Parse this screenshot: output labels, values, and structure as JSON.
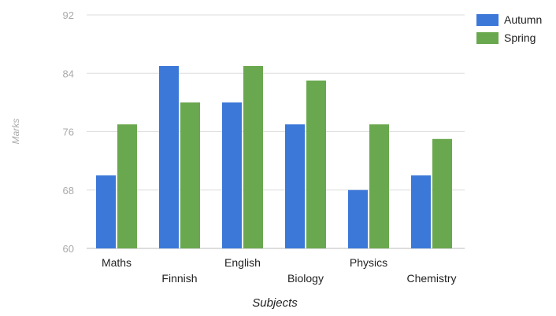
{
  "chart_data": {
    "type": "bar",
    "title": "",
    "xlabel": "Subjects",
    "ylabel": "Marks",
    "categories": [
      "Maths",
      "Finnish",
      "English",
      "Biology",
      "Physics",
      "Chemistry"
    ],
    "series": [
      {
        "name": "Autumn",
        "color": "#3c78d8",
        "values": [
          70,
          85,
          80,
          77,
          68,
          70
        ]
      },
      {
        "name": "Spring",
        "color": "#6aa84f",
        "values": [
          77,
          80,
          85,
          83,
          77,
          75
        ]
      }
    ],
    "ylim": [
      60,
      92
    ],
    "yticks": [
      60,
      68,
      76,
      84,
      92
    ],
    "grid": true,
    "legend_position": "top-right"
  }
}
